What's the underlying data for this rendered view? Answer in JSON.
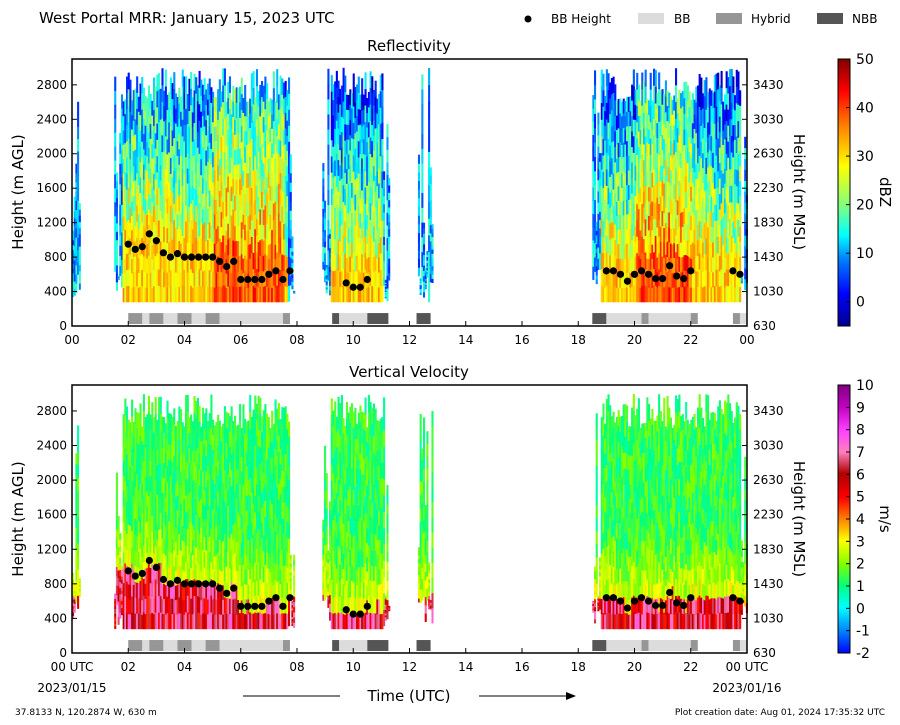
{
  "header": {
    "title": "West Portal MRR:  January 15, 2023 UTC",
    "legend": [
      {
        "label": "BB Height",
        "kind": "dot",
        "color": "#000000"
      },
      {
        "label": "BB",
        "kind": "box",
        "color": "#dcdcdc"
      },
      {
        "label": "Hybrid",
        "kind": "box",
        "color": "#969696"
      },
      {
        "label": "NBB",
        "kind": "box",
        "color": "#555555"
      }
    ]
  },
  "footer": {
    "location": "37.8133 N, 120.2874 W, 630 m",
    "creation": "Plot creation date: Aug 01, 2024 17:35:32 UTC",
    "start_date": "2023/01/15",
    "end_date": "2023/01/16",
    "time_label": "Time (UTC)"
  },
  "chart_data": [
    {
      "type": "heatmap",
      "title": "Reflectivity",
      "field": "reflectivity",
      "ylabel": "Height (m AGL)",
      "ylabel_right": "Height (m MSL)",
      "colorbar_label": "dBZ",
      "colorbar_range": [
        -5,
        50
      ],
      "colorbar_ticks": [
        0,
        10,
        20,
        30,
        40,
        50
      ],
      "ylim": [
        0,
        3100
      ],
      "yticks": [
        0,
        400,
        800,
        1200,
        1600,
        2000,
        2400,
        2800
      ],
      "yticks_right": [
        "630",
        "1030",
        "1430",
        "1830",
        "2230",
        "2630",
        "3030",
        "3430"
      ],
      "xlim": [
        0,
        24
      ],
      "xticks": [
        "00",
        "02",
        "04",
        "06",
        "08",
        "10",
        "12",
        "14",
        "16",
        "18",
        "20",
        "22",
        "00"
      ],
      "echo_periods_utc": [
        [
          0.0,
          0.3
        ],
        [
          1.5,
          7.9
        ],
        [
          8.9,
          11.3
        ],
        [
          12.3,
          12.8
        ],
        [
          18.5,
          24.0
        ]
      ]
    },
    {
      "type": "heatmap",
      "title": "Vertical Velocity",
      "field": "vertical_velocity",
      "ylabel": "Height (m AGL)",
      "ylabel_right": "Height (m MSL)",
      "colorbar_label": "m/s",
      "colorbar_range": [
        -2,
        10
      ],
      "colorbar_ticks": [
        -2,
        -1,
        0,
        1,
        2,
        3,
        4,
        5,
        6,
        7,
        8,
        9,
        10
      ],
      "ylim": [
        0,
        3100
      ],
      "yticks": [
        0,
        400,
        800,
        1200,
        1600,
        2000,
        2400,
        2800
      ],
      "yticks_right": [
        "630",
        "1030",
        "1430",
        "1830",
        "2230",
        "2630",
        "3030",
        "3430"
      ],
      "xlim": [
        0,
        24
      ],
      "xticks": [
        "00 UTC",
        "02",
        "04",
        "06",
        "08",
        "10",
        "12",
        "14",
        "16",
        "18",
        "20",
        "22",
        "00 UTC"
      ],
      "echo_periods_utc": [
        [
          0.0,
          0.3
        ],
        [
          1.5,
          7.9
        ],
        [
          8.9,
          11.3
        ],
        [
          12.3,
          12.8
        ],
        [
          18.5,
          24.0
        ]
      ]
    }
  ],
  "bb_height_points": [
    {
      "t": 2.0,
      "h": 950
    },
    {
      "t": 2.25,
      "h": 890
    },
    {
      "t": 2.5,
      "h": 920
    },
    {
      "t": 2.75,
      "h": 1070
    },
    {
      "t": 3.0,
      "h": 990
    },
    {
      "t": 3.25,
      "h": 850
    },
    {
      "t": 3.5,
      "h": 800
    },
    {
      "t": 3.75,
      "h": 840
    },
    {
      "t": 4.0,
      "h": 800
    },
    {
      "t": 4.25,
      "h": 800
    },
    {
      "t": 4.5,
      "h": 800
    },
    {
      "t": 4.75,
      "h": 800
    },
    {
      "t": 5.0,
      "h": 800
    },
    {
      "t": 5.25,
      "h": 750
    },
    {
      "t": 5.5,
      "h": 690
    },
    {
      "t": 5.75,
      "h": 750
    },
    {
      "t": 6.0,
      "h": 540
    },
    {
      "t": 6.25,
      "h": 540
    },
    {
      "t": 6.5,
      "h": 540
    },
    {
      "t": 6.75,
      "h": 540
    },
    {
      "t": 7.0,
      "h": 600
    },
    {
      "t": 7.25,
      "h": 640
    },
    {
      "t": 7.5,
      "h": 540
    },
    {
      "t": 7.75,
      "h": 640
    },
    {
      "t": 9.75,
      "h": 500
    },
    {
      "t": 10.0,
      "h": 450
    },
    {
      "t": 10.25,
      "h": 450
    },
    {
      "t": 10.5,
      "h": 540
    },
    {
      "t": 19.0,
      "h": 640
    },
    {
      "t": 19.25,
      "h": 640
    },
    {
      "t": 19.5,
      "h": 600
    },
    {
      "t": 19.75,
      "h": 520
    },
    {
      "t": 20.0,
      "h": 600
    },
    {
      "t": 20.25,
      "h": 640
    },
    {
      "t": 20.5,
      "h": 600
    },
    {
      "t": 20.75,
      "h": 550
    },
    {
      "t": 21.0,
      "h": 550
    },
    {
      "t": 21.25,
      "h": 700
    },
    {
      "t": 21.5,
      "h": 580
    },
    {
      "t": 21.75,
      "h": 550
    },
    {
      "t": 22.0,
      "h": 640
    },
    {
      "t": 23.5,
      "h": 640
    },
    {
      "t": 23.75,
      "h": 600
    }
  ],
  "bb_type_segments": [
    {
      "start": 2.0,
      "end": 2.5,
      "kind": "hybrid"
    },
    {
      "start": 2.5,
      "end": 2.75,
      "kind": "bb"
    },
    {
      "start": 2.75,
      "end": 3.25,
      "kind": "hybrid"
    },
    {
      "start": 3.25,
      "end": 3.75,
      "kind": "bb"
    },
    {
      "start": 3.75,
      "end": 4.25,
      "kind": "hybrid"
    },
    {
      "start": 4.25,
      "end": 4.75,
      "kind": "bb"
    },
    {
      "start": 4.75,
      "end": 5.25,
      "kind": "hybrid"
    },
    {
      "start": 5.25,
      "end": 7.5,
      "kind": "bb"
    },
    {
      "start": 7.5,
      "end": 7.75,
      "kind": "hybrid"
    },
    {
      "start": 9.25,
      "end": 9.5,
      "kind": "nbb"
    },
    {
      "start": 9.5,
      "end": 10.5,
      "kind": "bb"
    },
    {
      "start": 10.5,
      "end": 11.25,
      "kind": "nbb"
    },
    {
      "start": 12.25,
      "end": 12.75,
      "kind": "nbb"
    },
    {
      "start": 18.5,
      "end": 19.0,
      "kind": "nbb"
    },
    {
      "start": 19.0,
      "end": 20.25,
      "kind": "bb"
    },
    {
      "start": 20.25,
      "end": 20.5,
      "kind": "hybrid"
    },
    {
      "start": 20.5,
      "end": 22.0,
      "kind": "bb"
    },
    {
      "start": 22.0,
      "end": 22.25,
      "kind": "hybrid"
    },
    {
      "start": 23.5,
      "end": 23.75,
      "kind": "hybrid"
    },
    {
      "start": 23.75,
      "end": 24.0,
      "kind": "bb"
    }
  ]
}
